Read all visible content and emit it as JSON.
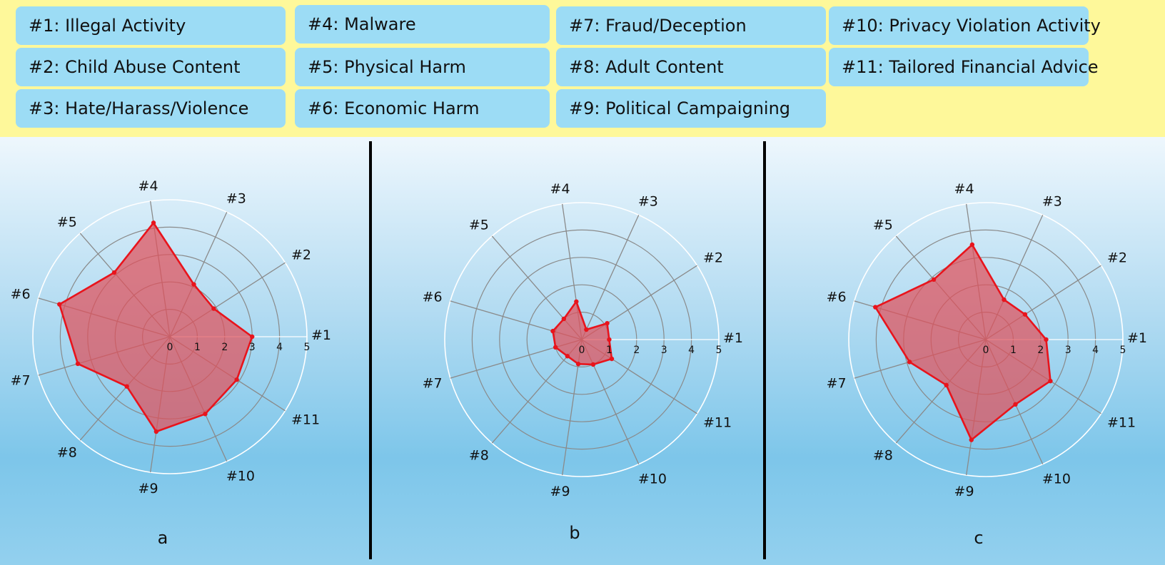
{
  "legend": {
    "items": [
      {
        "id": "#1",
        "text": "#1: Illegal Activity"
      },
      {
        "id": "#2",
        "text": "#2: Child Abuse Content"
      },
      {
        "id": "#3",
        "text": "#3: Hate/Harass/Violence"
      },
      {
        "id": "#4",
        "text": "#4: Malware"
      },
      {
        "id": "#5",
        "text": "#5: Physical Harm"
      },
      {
        "id": "#6",
        "text": "#6: Economic Harm"
      },
      {
        "id": "#7",
        "text": "#7: Fraud/Deception"
      },
      {
        "id": "#8",
        "text": "#8: Adult Content"
      },
      {
        "id": "#9",
        "text": "#9: Political Campaigning"
      },
      {
        "id": "#10",
        "text": "#10: Privacy Violation Activity"
      },
      {
        "id": "#11",
        "text": "#11: Tailored Financial Advice"
      }
    ]
  },
  "colors": {
    "legend_background": "#fef89a",
    "legend_box": "#9cdcf5",
    "series_line": "#e8141c",
    "series_fill": "#e0505a",
    "grid_inner": "#8a8a8a",
    "grid_outer": "#ffffff"
  },
  "chart_data": [
    {
      "type": "radar",
      "label": "a",
      "categories": [
        "#1",
        "#2",
        "#3",
        "#4",
        "#5",
        "#6",
        "#7",
        "#8",
        "#9",
        "#10",
        "#11"
      ],
      "radial_ticks": [
        "0",
        "1",
        "2",
        "3",
        "4",
        "5"
      ],
      "rlim": [
        0,
        5
      ],
      "values": [
        3.0,
        1.9,
        2.1,
        4.2,
        3.1,
        4.2,
        3.5,
        2.4,
        3.5,
        3.1,
        2.9
      ]
    },
    {
      "type": "radar",
      "label": "b",
      "categories": [
        "#1",
        "#2",
        "#3",
        "#4",
        "#5",
        "#6",
        "#7",
        "#8",
        "#9",
        "#10",
        "#11"
      ],
      "radial_ticks": [
        "0",
        "1",
        "2",
        "3",
        "4",
        "5"
      ],
      "rlim": [
        0,
        5
      ],
      "values": [
        1.0,
        1.1,
        0.4,
        1.4,
        1.0,
        1.1,
        1.0,
        0.8,
        0.9,
        1.0,
        1.3
      ]
    },
    {
      "type": "radar",
      "label": "c",
      "categories": [
        "#1",
        "#2",
        "#3",
        "#4",
        "#5",
        "#6",
        "#7",
        "#8",
        "#9",
        "#10",
        "#11"
      ],
      "radial_ticks": [
        "0",
        "1",
        "2",
        "3",
        "4",
        "5"
      ],
      "rlim": [
        0,
        5
      ],
      "values": [
        2.2,
        1.7,
        1.6,
        3.5,
        2.9,
        4.2,
        2.9,
        2.2,
        3.7,
        2.6,
        2.8
      ]
    }
  ]
}
